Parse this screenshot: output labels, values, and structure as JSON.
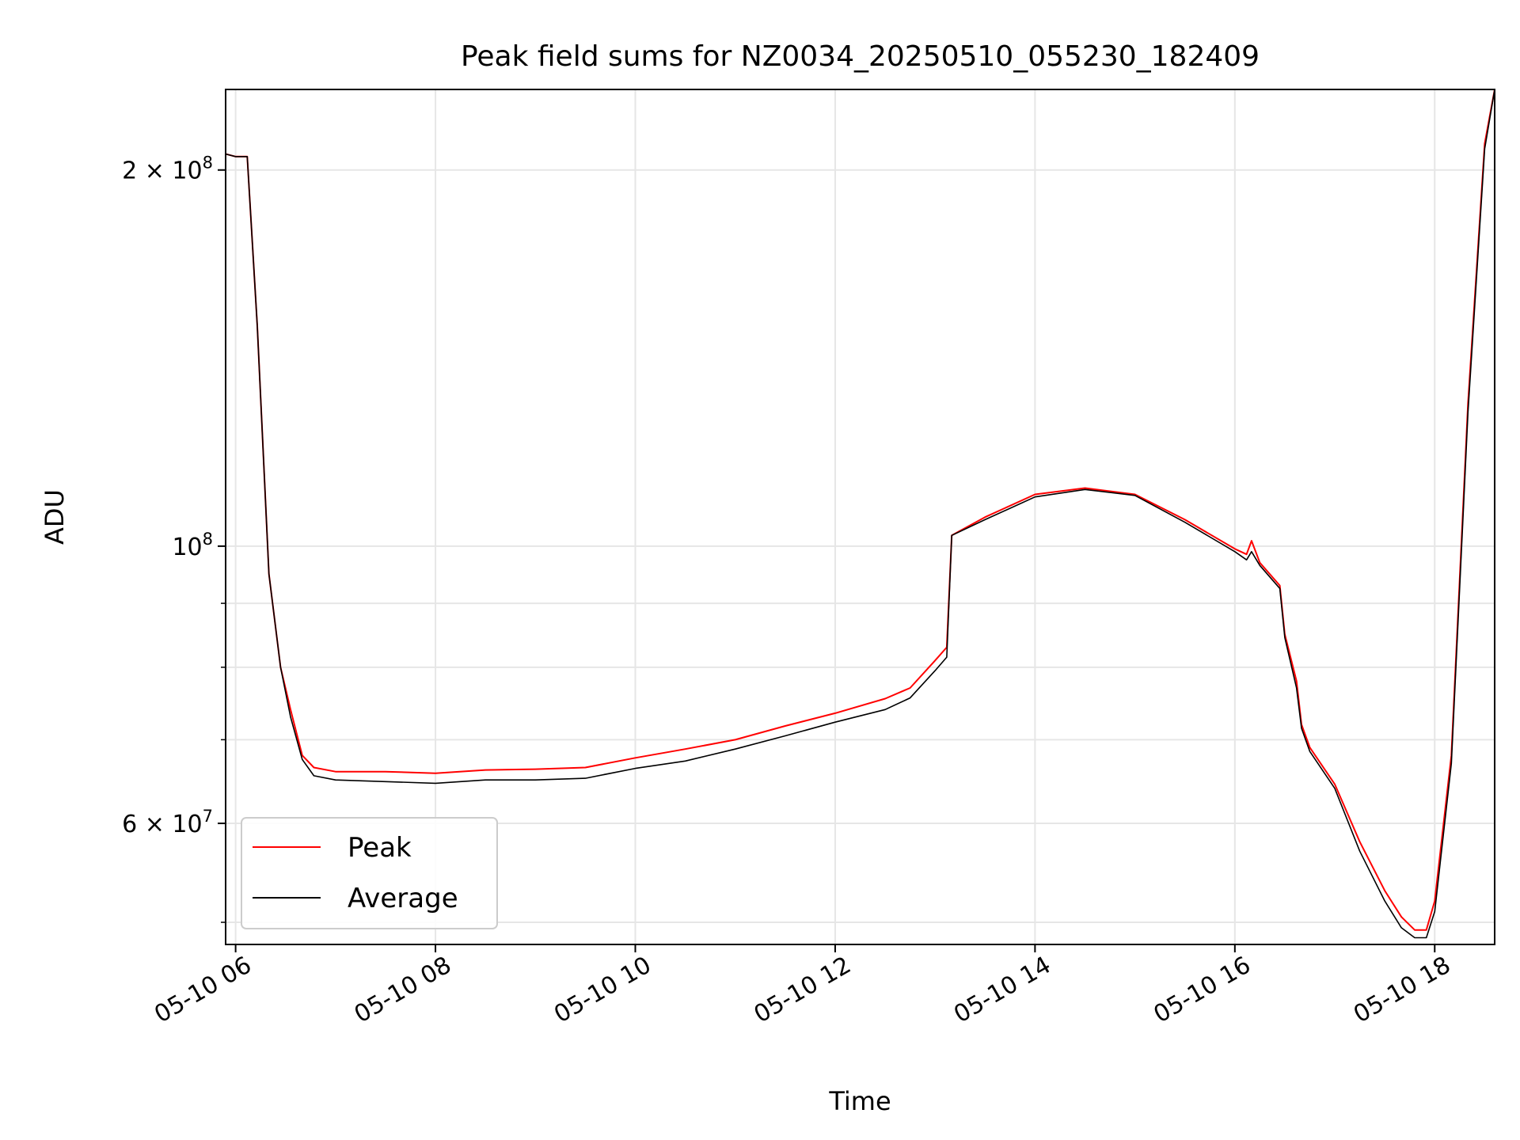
{
  "chart_data": {
    "type": "line",
    "title": "Peak field sums for NZ0034_20250510_055230_182409",
    "xlabel": "Time",
    "ylabel": "ADU",
    "x_range": [
      "2025-05-10T05:54",
      "2025-05-10T18:36"
    ],
    "y_range": [
      48000000,
      232000000
    ],
    "y_scale": "log",
    "grid": true,
    "legend_position": "lower left",
    "x_ticks": [
      {
        "value": "2025-05-10T06:00",
        "label": "05-10 06"
      },
      {
        "value": "2025-05-10T08:00",
        "label": "05-10 08"
      },
      {
        "value": "2025-05-10T10:00",
        "label": "05-10 10"
      },
      {
        "value": "2025-05-10T12:00",
        "label": "05-10 12"
      },
      {
        "value": "2025-05-10T14:00",
        "label": "05-10 14"
      },
      {
        "value": "2025-05-10T16:00",
        "label": "05-10 16"
      },
      {
        "value": "2025-05-10T18:00",
        "label": "05-10 18"
      }
    ],
    "y_major_ticks": [
      {
        "value": 60000000,
        "base": "6 × 10",
        "exp": "7"
      },
      {
        "value": 100000000,
        "base": "10",
        "exp": "8"
      },
      {
        "value": 200000000,
        "base": "2 × 10",
        "exp": "8"
      }
    ],
    "y_minor_ticks": [
      50000000,
      70000000,
      80000000,
      90000000
    ],
    "series": [
      {
        "name": "Peak",
        "color": "#ff0000",
        "x": [
          "2025-05-10T05:54",
          "2025-05-10T06:00",
          "2025-05-10T06:07",
          "2025-05-10T06:13",
          "2025-05-10T06:20",
          "2025-05-10T06:27",
          "2025-05-10T06:33",
          "2025-05-10T06:40",
          "2025-05-10T06:47",
          "2025-05-10T07:00",
          "2025-05-10T07:30",
          "2025-05-10T08:00",
          "2025-05-10T08:30",
          "2025-05-10T09:00",
          "2025-05-10T09:30",
          "2025-05-10T10:00",
          "2025-05-10T10:30",
          "2025-05-10T11:00",
          "2025-05-10T11:30",
          "2025-05-10T12:00",
          "2025-05-10T12:30",
          "2025-05-10T12:45",
          "2025-05-10T13:00",
          "2025-05-10T13:07",
          "2025-05-10T13:10",
          "2025-05-10T13:30",
          "2025-05-10T14:00",
          "2025-05-10T14:30",
          "2025-05-10T15:00",
          "2025-05-10T15:30",
          "2025-05-10T16:00",
          "2025-05-10T16:07",
          "2025-05-10T16:10",
          "2025-05-10T16:15",
          "2025-05-10T16:27",
          "2025-05-10T16:30",
          "2025-05-10T16:37",
          "2025-05-10T16:40",
          "2025-05-10T16:45",
          "2025-05-10T17:00",
          "2025-05-10T17:15",
          "2025-05-10T17:30",
          "2025-05-10T17:40",
          "2025-05-10T17:48",
          "2025-05-10T17:55",
          "2025-05-10T18:00",
          "2025-05-10T18:10",
          "2025-05-10T18:20",
          "2025-05-10T18:30",
          "2025-05-10T18:36"
        ],
        "y": [
          206000000,
          205000000,
          205000000,
          150000000,
          95000000,
          80000000,
          74000000,
          68000000,
          66500000,
          66000000,
          66000000,
          65800000,
          66200000,
          66300000,
          66500000,
          67700000,
          68800000,
          70000000,
          71800000,
          73500000,
          75500000,
          77000000,
          81000000,
          83000000,
          102000000,
          105500000,
          110000000,
          111300000,
          110000000,
          105000000,
          99500000,
          98500000,
          101000000,
          97000000,
          93000000,
          85000000,
          78000000,
          72000000,
          69000000,
          64500000,
          58000000,
          53000000,
          50500000,
          49300000,
          49300000,
          52000000,
          68000000,
          130000000,
          210000000,
          232000000
        ]
      },
      {
        "name": "Average",
        "color": "#000000",
        "x": [
          "2025-05-10T05:54",
          "2025-05-10T06:00",
          "2025-05-10T06:07",
          "2025-05-10T06:13",
          "2025-05-10T06:20",
          "2025-05-10T06:27",
          "2025-05-10T06:33",
          "2025-05-10T06:40",
          "2025-05-10T06:47",
          "2025-05-10T07:00",
          "2025-05-10T07:30",
          "2025-05-10T08:00",
          "2025-05-10T08:30",
          "2025-05-10T09:00",
          "2025-05-10T09:30",
          "2025-05-10T10:00",
          "2025-05-10T10:30",
          "2025-05-10T11:00",
          "2025-05-10T11:30",
          "2025-05-10T12:00",
          "2025-05-10T12:30",
          "2025-05-10T12:45",
          "2025-05-10T13:00",
          "2025-05-10T13:07",
          "2025-05-10T13:10",
          "2025-05-10T13:30",
          "2025-05-10T14:00",
          "2025-05-10T14:30",
          "2025-05-10T15:00",
          "2025-05-10T15:30",
          "2025-05-10T16:00",
          "2025-05-10T16:07",
          "2025-05-10T16:10",
          "2025-05-10T16:15",
          "2025-05-10T16:27",
          "2025-05-10T16:30",
          "2025-05-10T16:37",
          "2025-05-10T16:40",
          "2025-05-10T16:45",
          "2025-05-10T17:00",
          "2025-05-10T17:15",
          "2025-05-10T17:30",
          "2025-05-10T17:40",
          "2025-05-10T17:48",
          "2025-05-10T17:55",
          "2025-05-10T18:00",
          "2025-05-10T18:10",
          "2025-05-10T18:20",
          "2025-05-10T18:30",
          "2025-05-10T18:36"
        ],
        "y": [
          206000000,
          205000000,
          205000000,
          150000000,
          95000000,
          80000000,
          73000000,
          67500000,
          65500000,
          65000000,
          64800000,
          64600000,
          65000000,
          65000000,
          65200000,
          66400000,
          67300000,
          68800000,
          70500000,
          72300000,
          74000000,
          75600000,
          79500000,
          81500000,
          102000000,
          105000000,
          109500000,
          111000000,
          109800000,
          104500000,
          99000000,
          97500000,
          99000000,
          96500000,
          92500000,
          84500000,
          77000000,
          71500000,
          68500000,
          64000000,
          57000000,
          52000000,
          49500000,
          48600000,
          48600000,
          51000000,
          67000000,
          128000000,
          208000000,
          232000000
        ]
      }
    ]
  }
}
